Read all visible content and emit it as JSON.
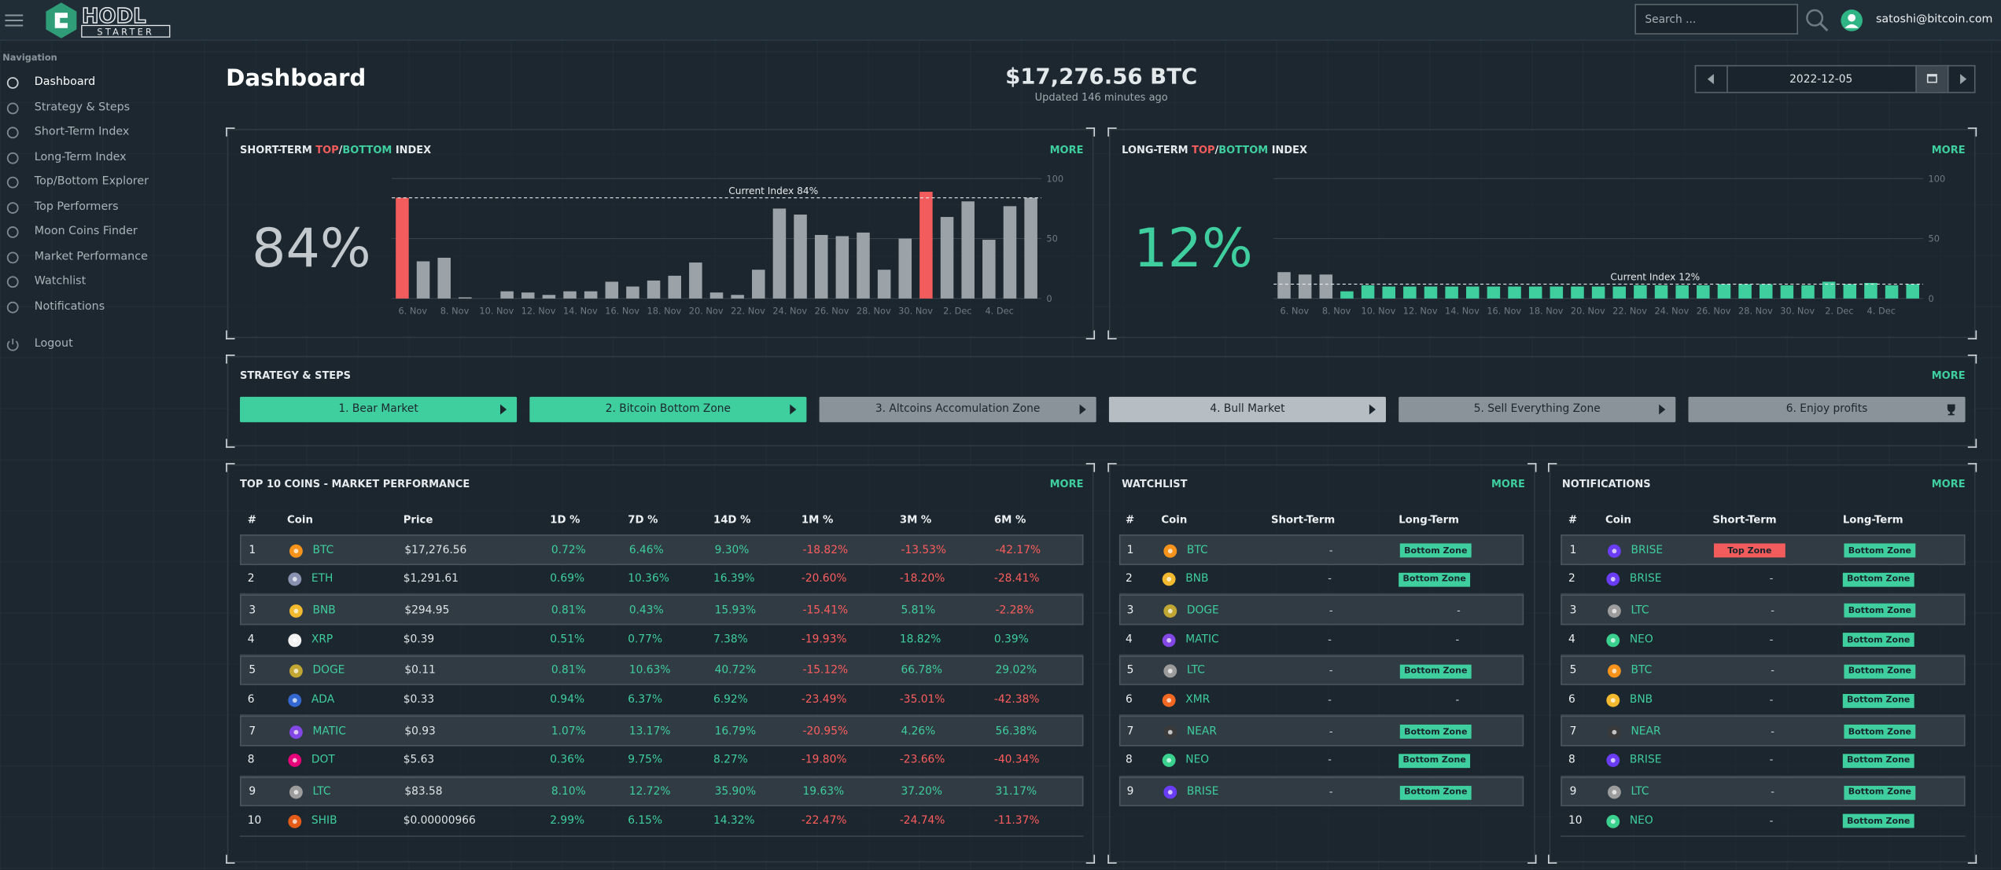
{
  "header": {
    "logo_top": "HODL",
    "logo_bottom": "STARTER",
    "search_placeholder": "Search ...",
    "user": "satoshi@bitcoin.com"
  },
  "nav": {
    "title": "Navigation",
    "items": [
      "Dashboard",
      "Strategy & Steps",
      "Short-Term Index",
      "Long-Term Index",
      "Top/Bottom Explorer",
      "Top Performers",
      "Moon Coins Finder",
      "Market Performance",
      "Watchlist",
      "Notifications"
    ],
    "logout": "Logout"
  },
  "page": {
    "title": "Dashboard",
    "price": "$17,276.56 BTC",
    "updated": "Updated 146 minutes ago",
    "date": "2022-12-05"
  },
  "chart_data": [
    {
      "type": "bar",
      "title_parts": [
        {
          "text": "SHORT-TERM "
        },
        {
          "text": "TOP",
          "color": "#f25c5c"
        },
        {
          "text": "/"
        },
        {
          "text": "BOTTOM",
          "color": "#3fcf9e"
        },
        {
          "text": " INDEX"
        }
      ],
      "more": "MORE",
      "current": {
        "value": 84,
        "label": "84%"
      },
      "current_color": "#c3c9cd",
      "plotline": {
        "value": 84,
        "label": "Current Index 84%"
      },
      "categories": [
        null,
        "6. Nov",
        null,
        "8. Nov",
        null,
        "10. Nov",
        null,
        "12. Nov",
        null,
        "14. Nov",
        null,
        "16. Nov",
        null,
        "18. Nov",
        null,
        "20. Nov",
        null,
        "22. Nov",
        null,
        "24. Nov",
        null,
        "26. Nov",
        null,
        "28. Nov",
        null,
        "30. Nov",
        null,
        "2. Dec",
        null,
        "4. Dec",
        null
      ],
      "values": [
        84,
        31,
        34,
        1,
        0,
        6,
        5,
        3,
        6,
        6,
        14,
        10,
        15,
        19,
        30,
        5,
        3,
        24,
        75,
        70,
        53,
        52,
        55,
        24,
        50,
        89,
        68,
        81,
        49,
        77,
        84
      ],
      "colors": [
        "#f25c5c",
        "#9ca3a8",
        "#9ca3a8",
        "#9ca3a8",
        "#9ca3a8",
        "#9ca3a8",
        "#9ca3a8",
        "#9ca3a8",
        "#9ca3a8",
        "#9ca3a8",
        "#9ca3a8",
        "#9ca3a8",
        "#9ca3a8",
        "#9ca3a8",
        "#9ca3a8",
        "#9ca3a8",
        "#9ca3a8",
        "#9ca3a8",
        "#9ca3a8",
        "#9ca3a8",
        "#9ca3a8",
        "#9ca3a8",
        "#9ca3a8",
        "#9ca3a8",
        "#9ca3a8",
        "#f25c5c",
        "#9ca3a8",
        "#9ca3a8",
        "#9ca3a8",
        "#9ca3a8",
        "#9ca3a8"
      ],
      "ylim": [
        0,
        100
      ],
      "yticks": [
        0,
        50,
        100
      ],
      "grid": true
    },
    {
      "type": "bar",
      "title_parts": [
        {
          "text": "LONG-TERM "
        },
        {
          "text": "TOP",
          "color": "#f25c5c"
        },
        {
          "text": "/"
        },
        {
          "text": "BOTTOM",
          "color": "#3fcf9e"
        },
        {
          "text": " INDEX"
        }
      ],
      "more": "MORE",
      "current": {
        "value": 12,
        "label": "12%"
      },
      "current_color": "#3fcf9e",
      "plotline": {
        "value": 12,
        "label": "Current Index 12%"
      },
      "categories": [
        null,
        "6. Nov",
        null,
        "8. Nov",
        null,
        "10. Nov",
        null,
        "12. Nov",
        null,
        "14. Nov",
        null,
        "16. Nov",
        null,
        "18. Nov",
        null,
        "20. Nov",
        null,
        "22. Nov",
        null,
        "24. Nov",
        null,
        "26. Nov",
        null,
        "28. Nov",
        null,
        "30. Nov",
        null,
        "2. Dec",
        null,
        "4. Dec",
        null
      ],
      "values": [
        22,
        20,
        20,
        6,
        11,
        10,
        10,
        10,
        10,
        10,
        10,
        10,
        10,
        10,
        10,
        10,
        10,
        11,
        11,
        11,
        11,
        12,
        12,
        12,
        11,
        11,
        14,
        12,
        13,
        11,
        12
      ],
      "colors": [
        "#9ca3a8",
        "#9ca3a8",
        "#9ca3a8",
        "#3fcf9e",
        "#3fcf9e",
        "#3fcf9e",
        "#3fcf9e",
        "#3fcf9e",
        "#3fcf9e",
        "#3fcf9e",
        "#3fcf9e",
        "#3fcf9e",
        "#3fcf9e",
        "#3fcf9e",
        "#3fcf9e",
        "#3fcf9e",
        "#3fcf9e",
        "#3fcf9e",
        "#3fcf9e",
        "#3fcf9e",
        "#3fcf9e",
        "#3fcf9e",
        "#3fcf9e",
        "#3fcf9e",
        "#3fcf9e",
        "#3fcf9e",
        "#3fcf9e",
        "#3fcf9e",
        "#3fcf9e",
        "#3fcf9e",
        "#3fcf9e"
      ],
      "ylim": [
        0,
        100
      ],
      "yticks": [
        0,
        50,
        100
      ],
      "grid": true
    }
  ],
  "strategy": {
    "title": "STRATEGY & STEPS",
    "more": "MORE",
    "steps": [
      {
        "label": "1. Bear Market",
        "color": "#3fcf9e"
      },
      {
        "label": "2. Bitcoin Bottom Zone",
        "color": "#3fcf9e"
      },
      {
        "label": "3. Altcoins Accomulation Zone",
        "color": "#8a9399"
      },
      {
        "label": "4. Bull Market",
        "color": "#b7bec3"
      },
      {
        "label": "5. Sell Everything Zone",
        "color": "#8a9399"
      },
      {
        "label": "6. Enjoy profits",
        "color": "#8a9399"
      }
    ]
  },
  "coin_colors": {
    "BTC": "#f7931a",
    "ETH": "#8a92b2",
    "BNB": "#f3ba2f",
    "XRP": "#f2f2f2",
    "DOGE": "#c2a633",
    "ADA": "#3468d1",
    "MATIC": "#8247e5",
    "DOT": "#e6007a",
    "LTC": "#9c9c9c",
    "SHIB": "#e45a17",
    "XMR": "#f26822",
    "NEAR": "#3a3a3a",
    "NEO": "#3ad18f",
    "BRISE": "#6b3cf5"
  },
  "top10": {
    "title": "TOP 10 COINS - MARKET PERFORMANCE",
    "more": "MORE",
    "headers": [
      "#",
      "Coin",
      "Price",
      "1D %",
      "7D %",
      "14D %",
      "1M %",
      "3M %",
      "6M %"
    ],
    "rows": [
      [
        "1",
        "BTC",
        "$17,276.56",
        "0.72%",
        "6.46%",
        "9.30%",
        "-18.82%",
        "-13.53%",
        "-42.17%"
      ],
      [
        "2",
        "ETH",
        "$1,291.61",
        "0.69%",
        "10.36%",
        "16.39%",
        "-20.60%",
        "-18.20%",
        "-28.41%"
      ],
      [
        "3",
        "BNB",
        "$294.95",
        "0.81%",
        "0.43%",
        "15.93%",
        "-15.41%",
        "5.81%",
        "-2.28%"
      ],
      [
        "4",
        "XRP",
        "$0.39",
        "0.51%",
        "0.77%",
        "7.38%",
        "-19.93%",
        "18.82%",
        "0.39%"
      ],
      [
        "5",
        "DOGE",
        "$0.11",
        "0.81%",
        "10.63%",
        "40.72%",
        "-15.12%",
        "66.78%",
        "29.02%"
      ],
      [
        "6",
        "ADA",
        "$0.33",
        "0.94%",
        "6.37%",
        "6.92%",
        "-23.49%",
        "-35.01%",
        "-42.38%"
      ],
      [
        "7",
        "MATIC",
        "$0.93",
        "1.07%",
        "13.17%",
        "16.79%",
        "-20.95%",
        "4.26%",
        "56.38%"
      ],
      [
        "8",
        "DOT",
        "$5.63",
        "0.36%",
        "9.75%",
        "8.27%",
        "-19.80%",
        "-23.66%",
        "-40.34%"
      ],
      [
        "9",
        "LTC",
        "$83.58",
        "8.10%",
        "12.72%",
        "35.90%",
        "19.63%",
        "37.20%",
        "31.17%"
      ],
      [
        "10",
        "SHIB",
        "$0.00000966",
        "2.99%",
        "6.15%",
        "14.32%",
        "-22.47%",
        "-24.74%",
        "-11.37%"
      ]
    ]
  },
  "watchlist": {
    "title": "WATCHLIST",
    "more": "MORE",
    "headers": [
      "#",
      "Coin",
      "Short-Term",
      "Long-Term"
    ],
    "rows": [
      [
        "1",
        "BTC",
        "-",
        "Bottom Zone"
      ],
      [
        "2",
        "BNB",
        "-",
        "Bottom Zone"
      ],
      [
        "3",
        "DOGE",
        "-",
        "-"
      ],
      [
        "4",
        "MATIC",
        "-",
        "-"
      ],
      [
        "5",
        "LTC",
        "-",
        "Bottom Zone"
      ],
      [
        "6",
        "XMR",
        "-",
        "-"
      ],
      [
        "7",
        "NEAR",
        "-",
        "Bottom Zone"
      ],
      [
        "8",
        "NEO",
        "-",
        "Bottom Zone"
      ],
      [
        "9",
        "BRISE",
        "-",
        "Bottom Zone"
      ]
    ]
  },
  "notifications": {
    "title": "NOTIFICATIONS",
    "more": "MORE",
    "headers": [
      "#",
      "Coin",
      "Short-Term",
      "Long-Term"
    ],
    "rows": [
      [
        "1",
        "BRISE",
        "Top Zone",
        "Bottom Zone"
      ],
      [
        "2",
        "BRISE",
        "-",
        "Bottom Zone"
      ],
      [
        "3",
        "LTC",
        "-",
        "Bottom Zone"
      ],
      [
        "4",
        "NEO",
        "-",
        "Bottom Zone"
      ],
      [
        "5",
        "BTC",
        "-",
        "Bottom Zone"
      ],
      [
        "6",
        "BNB",
        "-",
        "Bottom Zone"
      ],
      [
        "7",
        "NEAR",
        "-",
        "Bottom Zone"
      ],
      [
        "8",
        "BRISE",
        "-",
        "Bottom Zone"
      ],
      [
        "9",
        "LTC",
        "-",
        "Bottom Zone"
      ],
      [
        "10",
        "NEO",
        "-",
        "Bottom Zone"
      ]
    ]
  }
}
